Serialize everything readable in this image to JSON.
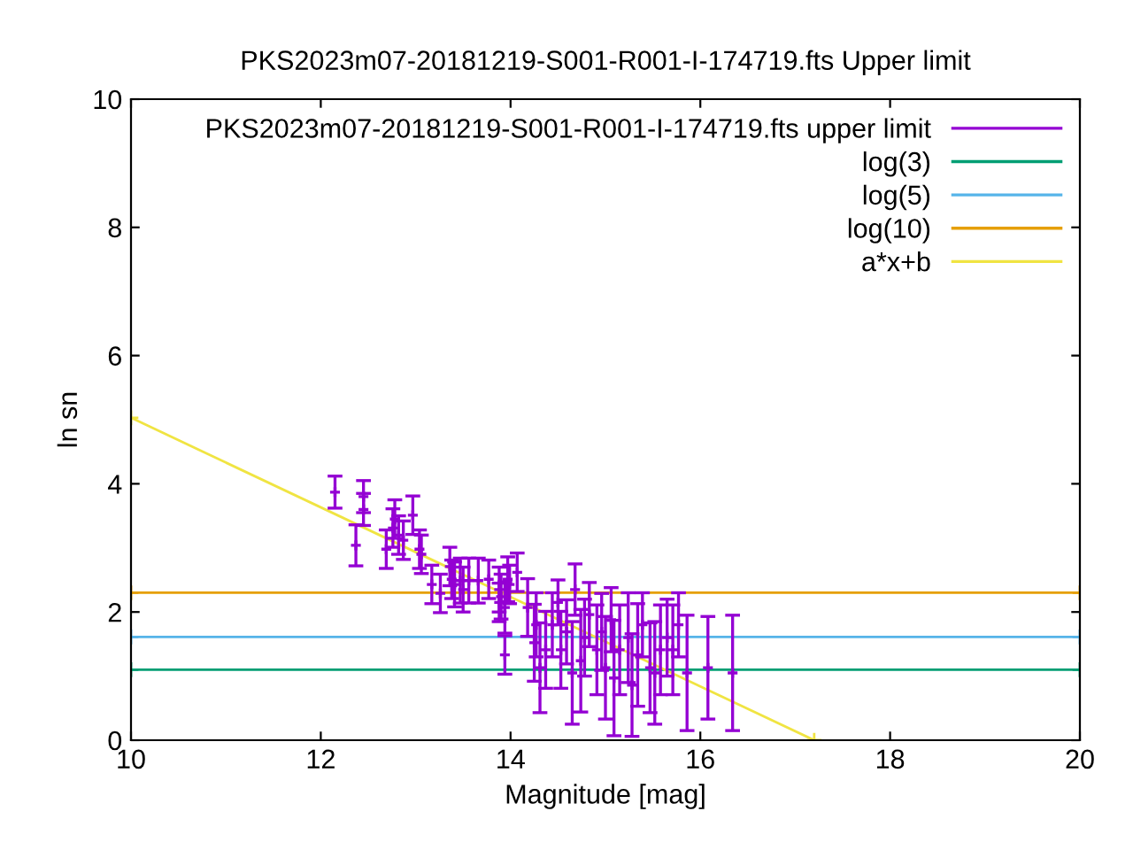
{
  "chart_data": {
    "type": "scatter",
    "title": "PKS2023m07-20181219-S001-R001-I-174719.fts Upper limit",
    "xlabel": "Magnitude [mag]",
    "ylabel": "ln sn",
    "xlim": [
      10,
      20
    ],
    "ylim": [
      0,
      10
    ],
    "xticks": [
      10,
      12,
      14,
      16,
      18,
      20
    ],
    "yticks": [
      0,
      2,
      4,
      6,
      8,
      10
    ],
    "legend": "top right",
    "grid": false,
    "marker": "cross",
    "series": [
      {
        "name": "PKS2023m07-20181219-S001-R001-I-174719.fts upper limit",
        "type": "scatter",
        "color": "#9400d3",
        "x": [
          12.15,
          12.45,
          12.45,
          12.37,
          12.76,
          12.78,
          12.82,
          12.69,
          12.87,
          12.97,
          13.04,
          13.06,
          13.17,
          13.26,
          13.36,
          13.38,
          13.41,
          13.47,
          13.5,
          13.56,
          13.66,
          13.77,
          13.88,
          13.9,
          13.94,
          13.97,
          13.88,
          13.94,
          13.99,
          14.07,
          14.18,
          14.25,
          14.27,
          14.31,
          14.37,
          14.44,
          14.5,
          14.53,
          14.59,
          14.65,
          14.68,
          14.74,
          14.78,
          14.83,
          14.91,
          14.96,
          15.0,
          15.06,
          15.09,
          15.15,
          15.24,
          15.28,
          15.34,
          15.39,
          15.47,
          15.52,
          15.58,
          15.65,
          15.71,
          15.77,
          15.86,
          16.08,
          16.34
        ],
        "values": [
          3.87,
          3.8,
          3.6,
          3.04,
          3.31,
          3.45,
          3.2,
          2.98,
          3.12,
          3.51,
          2.98,
          2.9,
          2.43,
          2.29,
          2.71,
          2.51,
          2.43,
          2.49,
          2.35,
          2.49,
          2.49,
          2.51,
          2.15,
          2.24,
          1.33,
          2.51,
          2.35,
          2.07,
          2.43,
          2.62,
          2.07,
          1.52,
          1.8,
          1.13,
          1.41,
          1.8,
          2.15,
          1.41,
          1.69,
          1.05,
          2.35,
          1.24,
          1.6,
          1.96,
          1.41,
          1.69,
          1.13,
          1.88,
          0.97,
          1.41,
          1.6,
          0.86,
          1.33,
          1.8,
          1.13,
          1.05,
          1.41,
          1.6,
          1.41,
          1.8,
          1.05,
          1.13,
          1.05
        ],
        "errors": [
          0.25,
          0.25,
          0.25,
          0.32,
          0.3,
          0.3,
          0.3,
          0.3,
          0.3,
          0.3,
          0.3,
          0.3,
          0.3,
          0.3,
          0.3,
          0.3,
          0.35,
          0.35,
          0.35,
          0.35,
          0.35,
          0.3,
          0.3,
          0.35,
          0.3,
          0.35,
          0.35,
          0.4,
          0.3,
          0.3,
          0.45,
          0.6,
          0.5,
          0.7,
          0.6,
          0.5,
          0.35,
          0.6,
          0.5,
          0.8,
          0.4,
          0.8,
          0.6,
          0.5,
          0.7,
          0.6,
          0.8,
          0.5,
          0.9,
          0.7,
          0.7,
          0.8,
          0.8,
          0.5,
          0.7,
          0.8,
          0.7,
          0.6,
          0.7,
          0.5,
          0.9,
          0.8,
          0.9
        ]
      },
      {
        "name": "log(3)",
        "type": "line",
        "color": "#009e73",
        "x": [
          10,
          20
        ],
        "values": [
          1.1,
          1.1
        ]
      },
      {
        "name": "log(5)",
        "type": "line",
        "color": "#56b4e9",
        "x": [
          10,
          20
        ],
        "values": [
          1.61,
          1.61
        ]
      },
      {
        "name": "log(10)",
        "type": "line",
        "color": "#e69f00",
        "x": [
          10,
          20
        ],
        "values": [
          2.3,
          2.3
        ]
      },
      {
        "name": "a*x+b",
        "type": "line",
        "color": "#f0e442",
        "x": [
          10,
          17.2
        ],
        "values": [
          5.03,
          0
        ]
      }
    ]
  }
}
